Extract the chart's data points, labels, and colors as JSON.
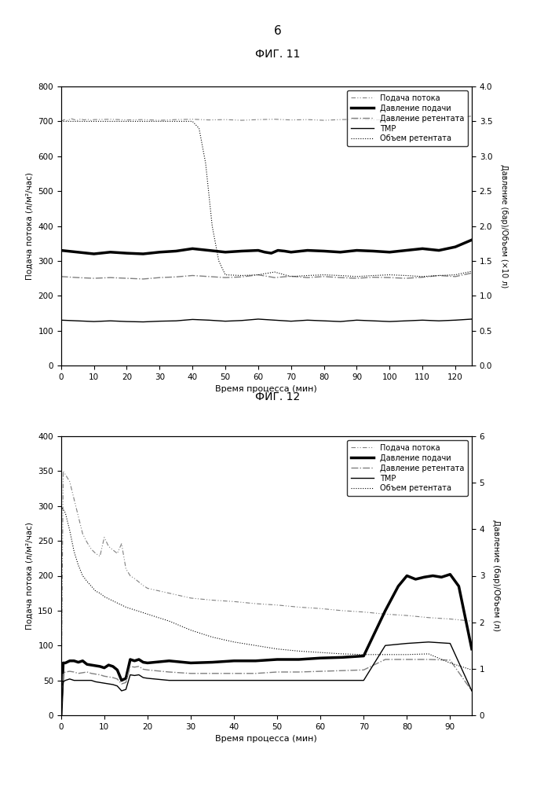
{
  "page_number": "6",
  "fig11_title": "ФИГ. 11",
  "fig12_title": "ФИГ. 12",
  "legend_labels": [
    "Подача потока",
    "Давление подачи",
    "Давление ретентата",
    "ТМР",
    "Объем ретентата"
  ],
  "fig11": {
    "xlabel": "Время процесса (мин)",
    "ylabel_left": "Подача потока (л/м²/час)",
    "ylabel_right": "Давление (бар)/Объем (×10 л)",
    "xlim": [
      0,
      125
    ],
    "ylim_left": [
      0,
      800
    ],
    "ylim_right": [
      0.0,
      4.0
    ],
    "xticks": [
      0,
      10,
      20,
      30,
      40,
      50,
      60,
      70,
      80,
      90,
      100,
      110,
      120
    ],
    "yticks_left": [
      0,
      100,
      200,
      300,
      400,
      500,
      600,
      700,
      800
    ],
    "yticks_right": [
      0.0,
      0.5,
      1.0,
      1.5,
      2.0,
      2.5,
      3.0,
      3.5,
      4.0
    ],
    "feed_flux": {
      "x": [
        0,
        1,
        2,
        3,
        4,
        5,
        6,
        7,
        8,
        9,
        10,
        15,
        20,
        25,
        30,
        35,
        40,
        45,
        50,
        55,
        60,
        65,
        70,
        75,
        80,
        85,
        90,
        95,
        100,
        105,
        110,
        115,
        120,
        125
      ],
      "y": [
        700,
        705,
        702,
        708,
        705,
        703,
        707,
        704,
        706,
        703,
        705,
        706,
        704,
        705,
        703,
        705,
        706,
        704,
        705,
        703,
        705,
        706,
        704,
        705,
        703,
        705,
        706,
        704,
        705,
        703,
        705,
        706,
        710,
        715
      ]
    },
    "feed_pressure": {
      "x": [
        0,
        5,
        10,
        15,
        20,
        25,
        30,
        35,
        40,
        45,
        50,
        55,
        60,
        62,
        64,
        66,
        68,
        70,
        75,
        80,
        85,
        90,
        95,
        100,
        105,
        110,
        115,
        120,
        125
      ],
      "y": [
        330,
        325,
        320,
        325,
        322,
        320,
        325,
        328,
        335,
        330,
        325,
        328,
        330,
        325,
        322,
        330,
        328,
        325,
        330,
        328,
        325,
        330,
        328,
        325,
        330,
        335,
        330,
        340,
        360
      ]
    },
    "retentate_pressure": {
      "x": [
        0,
        5,
        10,
        15,
        20,
        25,
        30,
        35,
        40,
        45,
        50,
        55,
        60,
        65,
        70,
        75,
        80,
        85,
        90,
        95,
        100,
        105,
        110,
        115,
        120,
        125
      ],
      "y": [
        255,
        252,
        250,
        252,
        250,
        248,
        252,
        254,
        258,
        255,
        252,
        254,
        260,
        252,
        256,
        252,
        255,
        252,
        250,
        253,
        252,
        250,
        253,
        258,
        255,
        265
      ]
    },
    "tmp": {
      "x": [
        0,
        5,
        10,
        15,
        20,
        25,
        30,
        35,
        40,
        45,
        50,
        55,
        60,
        65,
        70,
        75,
        80,
        85,
        90,
        95,
        100,
        105,
        110,
        115,
        120,
        125
      ],
      "y": [
        130,
        128,
        126,
        128,
        126,
        125,
        127,
        128,
        132,
        130,
        127,
        129,
        133,
        130,
        127,
        130,
        128,
        126,
        130,
        128,
        126,
        128,
        130,
        128,
        130,
        133
      ]
    },
    "retentate_volume": {
      "x": [
        0,
        5,
        10,
        15,
        20,
        25,
        30,
        35,
        40,
        42,
        44,
        46,
        48,
        50,
        55,
        60,
        65,
        70,
        75,
        80,
        85,
        90,
        95,
        100,
        105,
        110,
        115,
        120,
        125
      ],
      "y": [
        700,
        700,
        700,
        700,
        700,
        700,
        700,
        700,
        700,
        680,
        580,
        400,
        300,
        260,
        258,
        260,
        268,
        255,
        258,
        260,
        258,
        255,
        258,
        260,
        258,
        255,
        258,
        260,
        270
      ]
    }
  },
  "fig12": {
    "xlabel": "Время процесса (мин)",
    "ylabel_left": "Подача потока (л/м²/час)",
    "ylabel_right": "Давление (бар)/Объем (л)",
    "xlim": [
      0,
      95
    ],
    "ylim_left": [
      0,
      400
    ],
    "ylim_right": [
      0.0,
      6.0
    ],
    "xticks": [
      0,
      10,
      20,
      30,
      40,
      50,
      60,
      70,
      80,
      90
    ],
    "yticks_left": [
      0,
      50,
      100,
      150,
      200,
      250,
      300,
      350,
      400
    ],
    "yticks_right": [
      0.0,
      1.0,
      2.0,
      3.0,
      4.0,
      5.0,
      6.0
    ],
    "feed_flux": {
      "x": [
        0,
        0.5,
        1,
        2,
        3,
        4,
        5,
        6,
        7,
        8,
        9,
        10,
        11,
        12,
        13,
        14,
        15,
        16,
        17,
        18,
        19,
        20,
        25,
        30,
        35,
        40,
        45,
        50,
        55,
        60,
        65,
        70,
        75,
        80,
        85,
        90,
        95
      ],
      "y": [
        0,
        350,
        345,
        335,
        310,
        285,
        260,
        248,
        238,
        232,
        228,
        255,
        242,
        237,
        232,
        246,
        210,
        200,
        196,
        191,
        186,
        182,
        175,
        168,
        165,
        163,
        160,
        158,
        155,
        153,
        150,
        148,
        145,
        143,
        140,
        138,
        135
      ]
    },
    "feed_pressure": {
      "x": [
        0,
        0.5,
        1,
        2,
        3,
        4,
        5,
        6,
        7,
        8,
        9,
        10,
        11,
        12,
        13,
        14,
        15,
        16,
        17,
        18,
        19,
        20,
        25,
        30,
        35,
        40,
        45,
        50,
        55,
        60,
        65,
        70,
        75,
        78,
        80,
        82,
        84,
        86,
        88,
        90,
        92,
        95
      ],
      "y": [
        0,
        75,
        75,
        78,
        78,
        76,
        78,
        73,
        72,
        71,
        70,
        68,
        72,
        70,
        65,
        50,
        53,
        80,
        78,
        80,
        76,
        75,
        78,
        75,
        76,
        78,
        78,
        80,
        80,
        82,
        83,
        85,
        150,
        185,
        200,
        195,
        198,
        200,
        198,
        202,
        185,
        95
      ]
    },
    "retentate_pressure": {
      "x": [
        0,
        0.5,
        1,
        2,
        3,
        4,
        5,
        6,
        7,
        8,
        9,
        10,
        11,
        12,
        13,
        14,
        15,
        16,
        17,
        18,
        19,
        20,
        25,
        30,
        35,
        40,
        45,
        50,
        55,
        60,
        65,
        70,
        75,
        80,
        85,
        90,
        95
      ],
      "y": [
        0,
        60,
        62,
        63,
        62,
        60,
        61,
        62,
        60,
        59,
        58,
        56,
        55,
        54,
        52,
        45,
        47,
        70,
        69,
        70,
        66,
        65,
        62,
        60,
        60,
        60,
        60,
        62,
        62,
        63,
        64,
        65,
        80,
        80,
        80,
        79,
        35
      ]
    },
    "tmp": {
      "x": [
        0,
        0.5,
        1,
        2,
        3,
        4,
        5,
        6,
        7,
        8,
        9,
        10,
        11,
        12,
        13,
        14,
        15,
        16,
        17,
        18,
        19,
        20,
        25,
        30,
        35,
        40,
        45,
        50,
        55,
        60,
        65,
        70,
        75,
        80,
        85,
        90,
        95
      ],
      "y": [
        0,
        48,
        50,
        52,
        50,
        50,
        50,
        50,
        50,
        48,
        47,
        46,
        45,
        44,
        42,
        35,
        37,
        58,
        57,
        58,
        54,
        53,
        50,
        50,
        50,
        50,
        50,
        50,
        50,
        50,
        50,
        50,
        100,
        103,
        105,
        103,
        35
      ]
    },
    "retentate_volume": {
      "x": [
        0,
        1,
        2,
        3,
        4,
        5,
        6,
        7,
        8,
        9,
        10,
        15,
        20,
        25,
        30,
        35,
        40,
        45,
        50,
        55,
        60,
        65,
        70,
        75,
        80,
        85,
        90,
        95
      ],
      "y": [
        300,
        290,
        265,
        235,
        215,
        200,
        192,
        185,
        178,
        175,
        170,
        155,
        145,
        135,
        122,
        112,
        105,
        100,
        95,
        92,
        90,
        88,
        87,
        87,
        87,
        88,
        75,
        65
      ]
    }
  }
}
